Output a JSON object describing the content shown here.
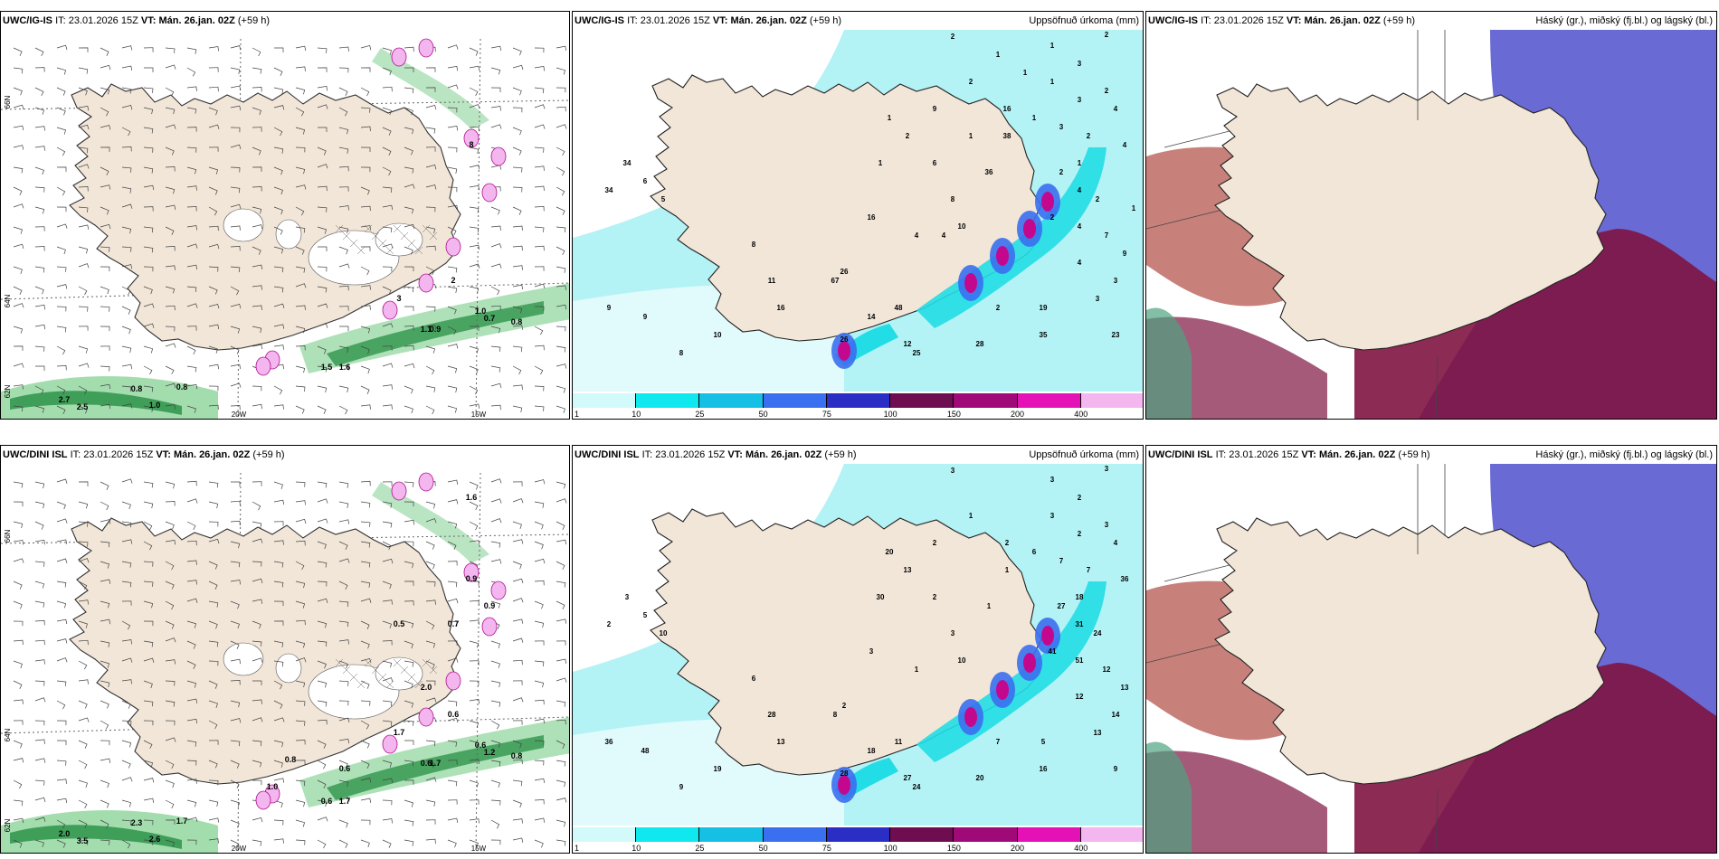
{
  "rows": [
    {
      "model": "UWC/IG-IS",
      "left": {
        "model": "UWC/IG-IS",
        "it_label": "IT:",
        "it": "23.01.2026 15Z",
        "vt_label": "VT:",
        "vt": "Mán. 26.jan. 02Z",
        "lead": "(+59 h)",
        "lat_labels": [
          "66N",
          "64N",
          "62N"
        ],
        "lon_labels": [
          "20W",
          "15W"
        ],
        "ice_values": [
          "1.0",
          "0.7",
          "0.8",
          "1.1",
          "0.9",
          "1.5",
          "1.6",
          "0.8",
          "2.7",
          "2.5",
          "1.0",
          "0.8",
          "8",
          "3",
          "2"
        ]
      },
      "middle": {
        "model": "UWC/IG-IS",
        "it_label": "IT:",
        "it": "23.01.2026 15Z",
        "vt_label": "VT:",
        "vt": "Mán. 26.jan. 02Z",
        "lead": "(+59 h)",
        "right_title": "Uppsöfnuð úrkoma (mm)",
        "values": [
          "2",
          "1",
          "2",
          "3",
          "2",
          "1",
          "3",
          "4",
          "2",
          "1",
          "2",
          "1",
          "4",
          "1",
          "2",
          "4",
          "2",
          "2",
          "4",
          "7",
          "9",
          "4",
          "3",
          "3",
          "2",
          "19",
          "23",
          "35",
          "28",
          "25",
          "26",
          "12",
          "14",
          "48",
          "67",
          "16",
          "11",
          "10",
          "9",
          "9",
          "8",
          "34",
          "34",
          "6",
          "5",
          "8",
          "16",
          "26",
          "38",
          "36",
          "8",
          "6",
          "4",
          "10",
          "9",
          "16",
          "1",
          "3",
          "2",
          "1",
          "1",
          "1",
          "4",
          "1"
        ],
        "colorbar": [
          "1",
          "10",
          "25",
          "50",
          "75",
          "100",
          "150",
          "200",
          "400"
        ]
      },
      "right": {
        "model": "UWC/IG-IS",
        "it_label": "IT:",
        "it": "23.01.2026 15Z",
        "vt_label": "VT:",
        "vt": "Mán. 26.jan. 02Z",
        "lead": "(+59 h)",
        "right_title": "Háský (gr.), miðský (fj.bl.) og lágský (bl.)"
      }
    },
    {
      "model": "UWC/DINI ISL",
      "left": {
        "model": "UWC/DINI ISL",
        "it_label": "IT:",
        "it": "23.01.2026 15Z",
        "vt_label": "VT:",
        "vt": "Mán. 26.jan. 02Z",
        "lead": "(+59 h)",
        "lat_labels": [
          "66N",
          "64N",
          "62N"
        ],
        "lon_labels": [
          "20W",
          "15W"
        ],
        "ice_values": [
          "0.6",
          "1.2",
          "0.8",
          "0.6",
          "1.7",
          "0.6",
          "1.7",
          "1.7",
          "2.0",
          "3.5",
          "2.6",
          "2.3",
          "0.9",
          "1.7",
          "0.6",
          "2.0",
          "0.7",
          "0.5",
          "1.0",
          "1.6",
          "0.9",
          "0.8",
          "0.6"
        ]
      },
      "middle": {
        "model": "UWC/DINI ISL",
        "it_label": "IT:",
        "it": "23.01.2026 15Z",
        "vt_label": "VT:",
        "vt": "Mán. 26.jan. 02Z",
        "lead": "(+59 h)",
        "right_title": "Uppsöfnuð úrkoma (mm)",
        "values": [
          "3",
          "3",
          "3",
          "2",
          "1",
          "3",
          "2",
          "4",
          "7",
          "20",
          "13",
          "30",
          "36",
          "18",
          "27",
          "31",
          "24",
          "41",
          "51",
          "12",
          "13",
          "12",
          "14",
          "13",
          "7",
          "5",
          "9",
          "16",
          "20",
          "24",
          "28",
          "27",
          "18",
          "11",
          "8",
          "13",
          "28",
          "19",
          "48",
          "36",
          "9",
          "3",
          "2",
          "5",
          "10",
          "6",
          "3",
          "2",
          "1",
          "1",
          "3",
          "2",
          "1",
          "10",
          "2",
          "2",
          "6",
          "7",
          "3"
        ],
        "colorbar": [
          "1",
          "10",
          "25",
          "50",
          "75",
          "100",
          "150",
          "200",
          "400"
        ]
      },
      "right": {
        "model": "UWC/DINI ISL",
        "it_label": "IT:",
        "it": "23.01.2026 15Z",
        "vt_label": "VT:",
        "vt": "Mán. 26.jan. 02Z",
        "lead": "(+59 h)",
        "right_title": "Háský (gr.), miðský (fj.bl.) og lágský (bl.)"
      }
    }
  ],
  "colors": {
    "land": "#f2e6d8",
    "precip_light": "#b3f2f5",
    "precip_cyan": "#22dde6",
    "precip_blue": "#3a6ff0",
    "precip_magenta": "#c4088e",
    "precip_pink": "#f3b6ee",
    "ice_green": "#8cd49a",
    "ice_dark": "#1e8a3c",
    "cloud_blue": "#5a5ad0",
    "cloud_maroon": "#7f1441",
    "cloud_red": "#b4564e"
  },
  "colorbar_colors": [
    "#d2fafb",
    "#0ee8ee",
    "#16bfe4",
    "#3a6ff0",
    "#2b2ec4",
    "#6e0d50",
    "#a00a78",
    "#e411b6",
    "#f3b6ee"
  ]
}
